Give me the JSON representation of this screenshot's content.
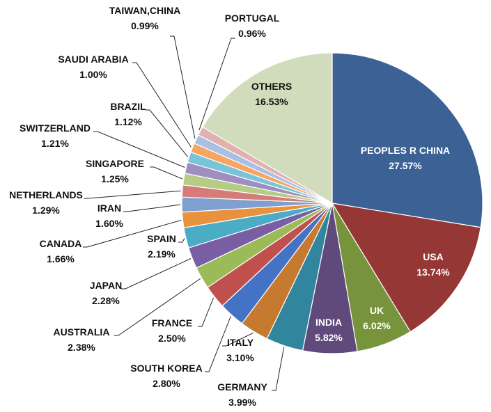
{
  "chart_data": {
    "type": "pie",
    "title": "",
    "slices": [
      {
        "label": "PEOPLES R CHINA",
        "value": 27.57,
        "display": "27.57%",
        "color": "#3b6195"
      },
      {
        "label": "USA",
        "value": 13.74,
        "display": "13.74%",
        "color": "#953735"
      },
      {
        "label": "UK",
        "value": 6.02,
        "display": "6.02%",
        "color": "#77933c"
      },
      {
        "label": "INDIA",
        "value": 5.82,
        "display": "5.82%",
        "color": "#604a7b"
      },
      {
        "label": "GERMANY",
        "value": 3.99,
        "display": "3.99%",
        "color": "#31859c"
      },
      {
        "label": "ITALY",
        "value": 3.1,
        "display": "3.10%",
        "color": "#c57a2f"
      },
      {
        "label": "SOUTH KOREA",
        "value": 2.8,
        "display": "2.80%",
        "color": "#4472c4"
      },
      {
        "label": "FRANCE",
        "value": 2.5,
        "display": "2.50%",
        "color": "#c0504d"
      },
      {
        "label": "AUSTRALIA",
        "value": 2.38,
        "display": "2.38%",
        "color": "#9bbb59"
      },
      {
        "label": "JAPAN",
        "value": 2.28,
        "display": "2.28%",
        "color": "#7a5ea3"
      },
      {
        "label": "SPAIN",
        "value": 2.19,
        "display": "2.19%",
        "color": "#4bacc6"
      },
      {
        "label": "CANADA",
        "value": 1.66,
        "display": "1.66%",
        "color": "#e8923e"
      },
      {
        "label": "IRAN",
        "value": 1.6,
        "display": "1.60%",
        "color": "#7f9fd1"
      },
      {
        "label": "NETHERLANDS",
        "value": 1.29,
        "display": "1.29%",
        "color": "#d57c7a"
      },
      {
        "label": "SINGAPORE",
        "value": 1.25,
        "display": "1.25%",
        "color": "#b5cc85"
      },
      {
        "label": "SWITZERLAND",
        "value": 1.21,
        "display": "1.21%",
        "color": "#9f8fc0"
      },
      {
        "label": "BRAZIL",
        "value": 1.12,
        "display": "1.12%",
        "color": "#79c4d8"
      },
      {
        "label": "SAUDI ARABIA",
        "value": 1.0,
        "display": "1.00%",
        "color": "#f5a662"
      },
      {
        "label": "TAIWAN,CHINA",
        "value": 0.99,
        "display": "0.99%",
        "color": "#a9bfe3"
      },
      {
        "label": "PORTUGAL",
        "value": 0.96,
        "display": "0.96%",
        "color": "#e2b0af"
      },
      {
        "label": "OTHERS",
        "value": 16.53,
        "display": "16.53%",
        "color": "#d0dcbc"
      }
    ]
  }
}
